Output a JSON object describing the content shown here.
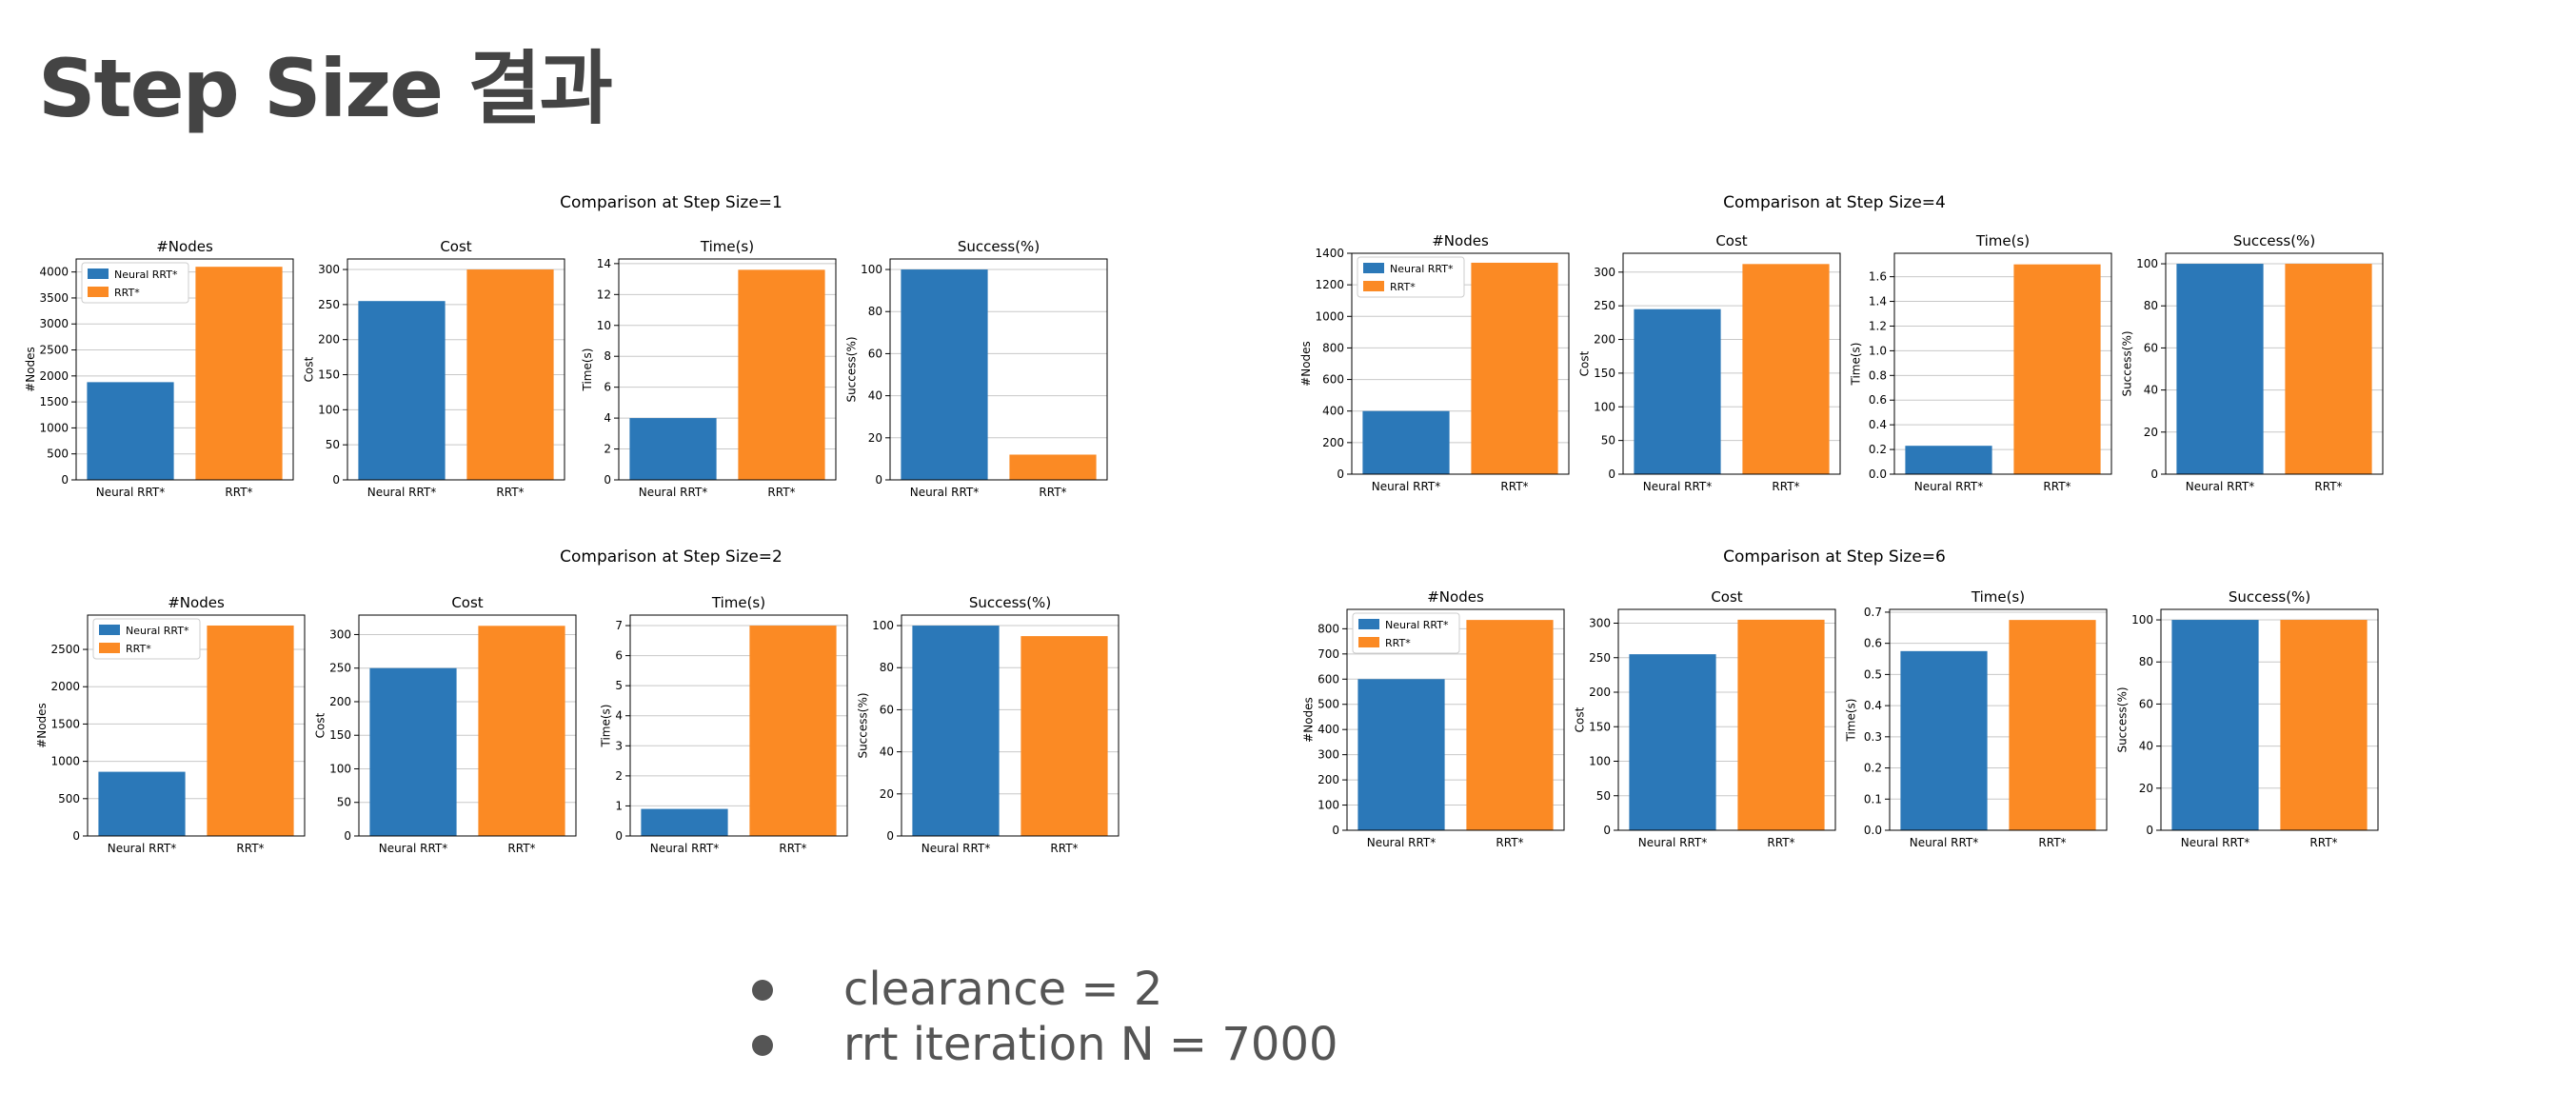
{
  "title": "Step Size 결과",
  "bullets": [
    "clearance = 2",
    "rrt iteration N = 7000"
  ],
  "colors": {
    "neural": "#2b78b8",
    "rrt": "#fb8a24",
    "grid": "#c8c8c8",
    "axis": "#000000"
  },
  "chart_data": [
    {
      "type": "bar",
      "title": "Comparison at Step Size=1",
      "categories": [
        "Neural RRT*",
        "RRT*"
      ],
      "legend": [
        "Neural RRT*",
        "RRT*"
      ],
      "panels": [
        {
          "title": "#Nodes",
          "ylabel": "#Nodes",
          "values": [
            1880,
            4100
          ],
          "ylim": [
            0,
            4250
          ],
          "ticks": [
            0,
            500,
            1000,
            1500,
            2000,
            2500,
            3000,
            3500,
            4000
          ],
          "tick_labels": [
            "0",
            "500",
            "1000",
            "1500",
            "2000",
            "2500",
            "3000",
            "3500",
            "4000"
          ]
        },
        {
          "title": "Cost",
          "ylabel": "Cost",
          "values": [
            255,
            300
          ],
          "ylim": [
            0,
            315
          ],
          "ticks": [
            0,
            50,
            100,
            150,
            200,
            250,
            300
          ],
          "tick_labels": [
            "0",
            "50",
            "100",
            "150",
            "200",
            "250",
            "300"
          ]
        },
        {
          "title": "Time(s)",
          "ylabel": "Time(s)",
          "values": [
            4.0,
            13.6
          ],
          "ylim": [
            0,
            14.3
          ],
          "ticks": [
            0,
            2,
            4,
            6,
            8,
            10,
            12,
            14
          ],
          "tick_labels": [
            "0",
            "2",
            "4",
            "6",
            "8",
            "10",
            "12",
            "14"
          ]
        },
        {
          "title": "Success(%)",
          "ylabel": "Success(%)",
          "values": [
            100,
            12
          ],
          "ylim": [
            0,
            105
          ],
          "ticks": [
            0,
            20,
            40,
            60,
            80,
            100
          ],
          "tick_labels": [
            "0",
            "20",
            "40",
            "60",
            "80",
            "100"
          ]
        }
      ]
    },
    {
      "type": "bar",
      "title": "Comparison at Step Size=4",
      "categories": [
        "Neural RRT*",
        "RRT*"
      ],
      "legend": [
        "Neural RRT*",
        "RRT*"
      ],
      "panels": [
        {
          "title": "#Nodes",
          "ylabel": "#Nodes",
          "values": [
            400,
            1340
          ],
          "ylim": [
            0,
            1400
          ],
          "ticks": [
            0,
            200,
            400,
            600,
            800,
            1000,
            1200,
            1400
          ],
          "tick_labels": [
            "0",
            "200",
            "400",
            "600",
            "800",
            "1000",
            "1200",
            "1400"
          ]
        },
        {
          "title": "Cost",
          "ylabel": "Cost",
          "values": [
            245,
            312
          ],
          "ylim": [
            0,
            328
          ],
          "ticks": [
            0,
            50,
            100,
            150,
            200,
            250,
            300
          ],
          "tick_labels": [
            "0",
            "50",
            "100",
            "150",
            "200",
            "250",
            "300"
          ]
        },
        {
          "title": "Time(s)",
          "ylabel": "Time(s)",
          "values": [
            0.23,
            1.7
          ],
          "ylim": [
            0,
            1.79
          ],
          "ticks": [
            0.0,
            0.2,
            0.4,
            0.6,
            0.8,
            1.0,
            1.2,
            1.4,
            1.6
          ],
          "tick_labels": [
            "0.0",
            "0.2",
            "0.4",
            "0.6",
            "0.8",
            "1.0",
            "1.2",
            "1.4",
            "1.6"
          ]
        },
        {
          "title": "Success(%)",
          "ylabel": "Success(%)",
          "values": [
            100,
            100
          ],
          "ylim": [
            0,
            105
          ],
          "ticks": [
            0,
            20,
            40,
            60,
            80,
            100
          ],
          "tick_labels": [
            "0",
            "20",
            "40",
            "60",
            "80",
            "100"
          ]
        }
      ]
    },
    {
      "type": "bar",
      "title": "Comparison at Step Size=2",
      "categories": [
        "Neural RRT*",
        "RRT*"
      ],
      "legend": [
        "Neural RRT*",
        "RRT*"
      ],
      "panels": [
        {
          "title": "#Nodes",
          "ylabel": "#Nodes",
          "values": [
            860,
            2820
          ],
          "ylim": [
            0,
            2960
          ],
          "ticks": [
            0,
            500,
            1000,
            1500,
            2000,
            2500
          ],
          "tick_labels": [
            "0",
            "500",
            "1000",
            "1500",
            "2000",
            "2500"
          ]
        },
        {
          "title": "Cost",
          "ylabel": "Cost",
          "values": [
            250,
            313
          ],
          "ylim": [
            0,
            329
          ],
          "ticks": [
            0,
            50,
            100,
            150,
            200,
            250,
            300
          ],
          "tick_labels": [
            "0",
            "50",
            "100",
            "150",
            "200",
            "250",
            "300"
          ]
        },
        {
          "title": "Time(s)",
          "ylabel": "Time(s)",
          "values": [
            0.9,
            7.0
          ],
          "ylim": [
            0,
            7.35
          ],
          "ticks": [
            0,
            1,
            2,
            3,
            4,
            5,
            6,
            7
          ],
          "tick_labels": [
            "0",
            "1",
            "2",
            "3",
            "4",
            "5",
            "6",
            "7"
          ]
        },
        {
          "title": "Success(%)",
          "ylabel": "Success(%)",
          "values": [
            100,
            95
          ],
          "ylim": [
            0,
            105
          ],
          "ticks": [
            0,
            20,
            40,
            60,
            80,
            100
          ],
          "tick_labels": [
            "0",
            "20",
            "40",
            "60",
            "80",
            "100"
          ]
        }
      ]
    },
    {
      "type": "bar",
      "title": "Comparison at Step Size=6",
      "categories": [
        "Neural RRT*",
        "RRT*"
      ],
      "legend": [
        "Neural RRT*",
        "RRT*"
      ],
      "panels": [
        {
          "title": "#Nodes",
          "ylabel": "#Nodes",
          "values": [
            600,
            835
          ],
          "ylim": [
            0,
            877
          ],
          "ticks": [
            0,
            100,
            200,
            300,
            400,
            500,
            600,
            700,
            800
          ],
          "tick_labels": [
            "0",
            "100",
            "200",
            "300",
            "400",
            "500",
            "600",
            "700",
            "800"
          ]
        },
        {
          "title": "Cost",
          "ylabel": "Cost",
          "values": [
            255,
            305
          ],
          "ylim": [
            0,
            320
          ],
          "ticks": [
            0,
            50,
            100,
            150,
            200,
            250,
            300
          ],
          "tick_labels": [
            "0",
            "50",
            "100",
            "150",
            "200",
            "250",
            "300"
          ]
        },
        {
          "title": "Time(s)",
          "ylabel": "Time(s)",
          "values": [
            0.575,
            0.675
          ],
          "ylim": [
            0,
            0.709
          ],
          "ticks": [
            0.0,
            0.1,
            0.2,
            0.3,
            0.4,
            0.5,
            0.6,
            0.7
          ],
          "tick_labels": [
            "0.0",
            "0.1",
            "0.2",
            "0.3",
            "0.4",
            "0.5",
            "0.6",
            "0.7"
          ]
        },
        {
          "title": "Success(%)",
          "ylabel": "Success(%)",
          "values": [
            100,
            100
          ],
          "ylim": [
            0,
            105
          ],
          "ticks": [
            0,
            20,
            40,
            60,
            80,
            100
          ],
          "tick_labels": [
            "0",
            "20",
            "40",
            "60",
            "80",
            "100"
          ]
        }
      ]
    }
  ]
}
